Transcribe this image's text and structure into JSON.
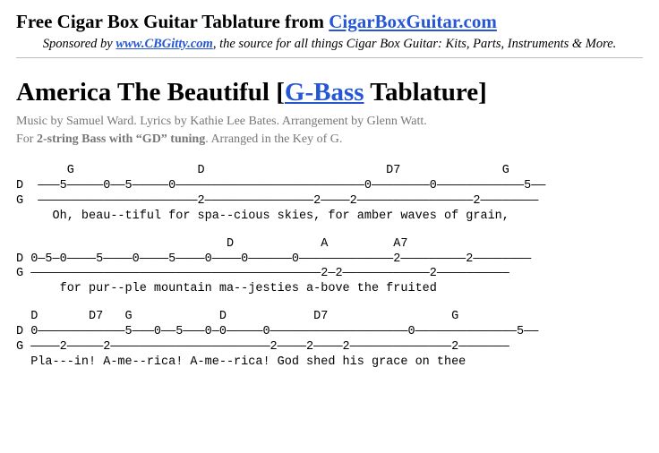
{
  "header": {
    "prefix": "Free Cigar Box Guitar Tablature from ",
    "link_text": "CigarBoxGuitar.com"
  },
  "sponsor": {
    "prefix": "Sponsored by ",
    "link_text": "www.CBGitty.com",
    "suffix": ", the source for all things Cigar Box Guitar: Kits, Parts, Instruments & More."
  },
  "title": {
    "song": "America The Beautiful [",
    "link_text": "G-Bass",
    "suffix": " Tablature]"
  },
  "meta": {
    "line1": "Music by Samuel Ward. Lyrics by Kathie Lee Bates. Arrangement by Glenn Watt.",
    "line2_prefix": "For ",
    "line2_bold": "2-string Bass with “GD” tuning",
    "line2_suffix": ". Arranged in the Key of G."
  },
  "tab": {
    "block1": "       G                 D                         D7              G\nD  ———5—————0——5—————0——————————————————————————0————————0————————————5——\nG  ——————————————————————2———————————————2————2————————————————2————————\n     Oh, beau--tiful for spa--cious skies, for amber waves of grain,",
    "block2": "                             D            A         A7\nD 0—5—0————5————0————5————0————0——————0—————————————2—————————2————————\nG ————————————————————————————————————————2—2————————————2——————————\n      for pur--ple mountain ma--jesties a-bove the fruited",
    "block3": "  D       D7   G            D            D7                 G\nD 0————————————5———0——5———0—0—————0———————————————————0——————————————5——\nG ————2—————2——————————————————————2————2————2——————————————2———————\n  Pla---in! A-me--rica! A-me--rica! God shed his grace on thee"
  }
}
